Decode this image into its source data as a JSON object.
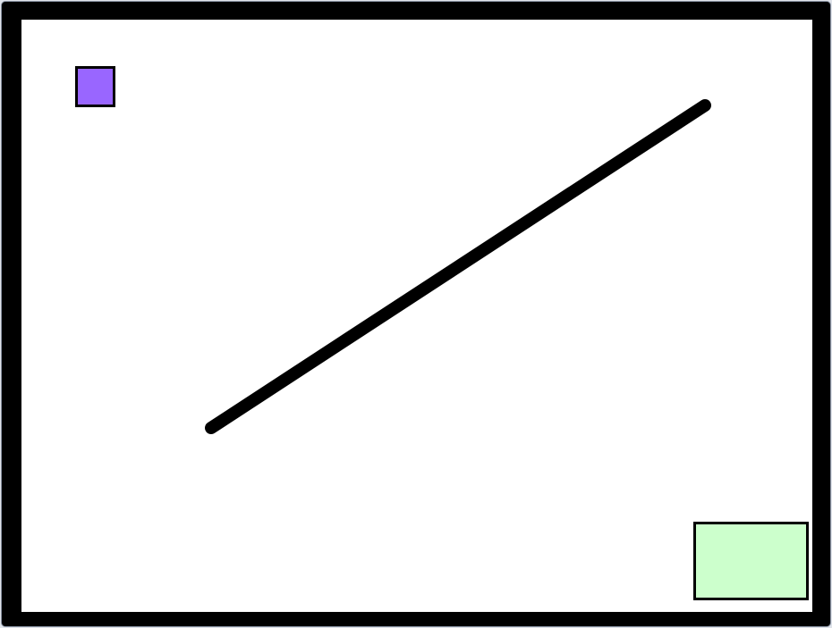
{
  "colors": {
    "border": "#000000",
    "field_background": "#ffffff",
    "player": "#9966ff",
    "goal": "#ccffcc",
    "wall": "#000000"
  },
  "elements": {
    "player": {
      "shape": "square",
      "color_name": "purple"
    },
    "goal": {
      "shape": "rectangle",
      "color_name": "light-green"
    },
    "wall": {
      "shape": "line",
      "color_name": "black"
    }
  }
}
